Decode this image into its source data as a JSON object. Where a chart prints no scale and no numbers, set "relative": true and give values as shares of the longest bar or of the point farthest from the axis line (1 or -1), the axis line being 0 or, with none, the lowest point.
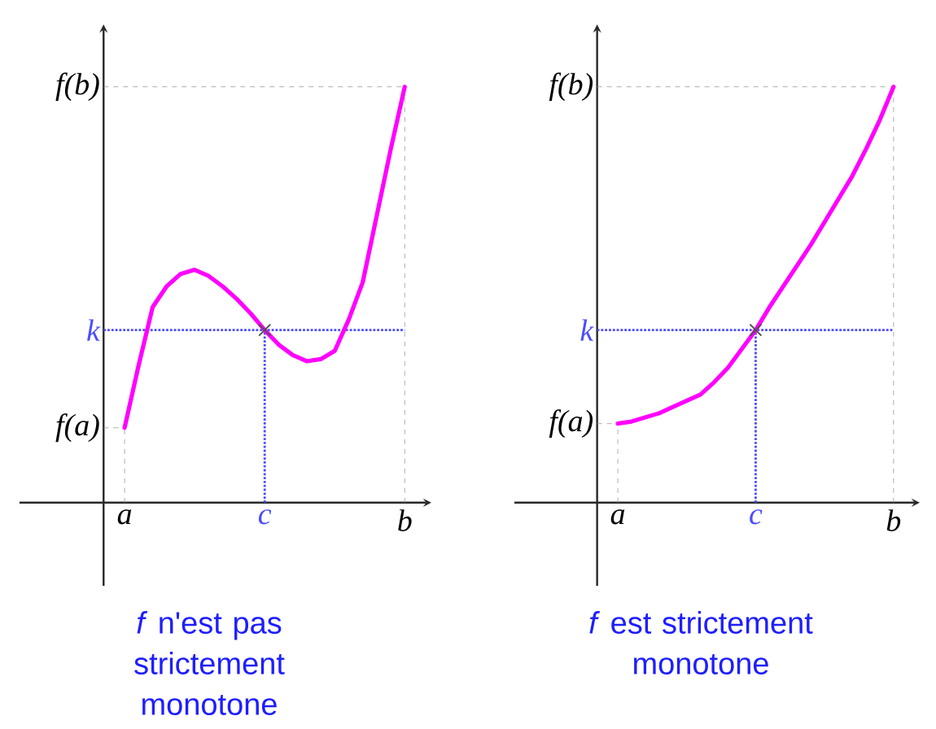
{
  "chart_data": [
    {
      "type": "line",
      "relative": true,
      "annotations": [
        "*f* n'est pas strictement monotone"
      ],
      "categories": [
        "a",
        null,
        null,
        null,
        null,
        null,
        null,
        null,
        null,
        null,
        "c",
        null,
        null,
        null,
        null,
        null,
        null,
        null,
        null,
        null,
        "b"
      ],
      "series": [
        {
          "type": "line",
          "color": "#ff00ff",
          "values": [
            0.18,
            0.33,
            0.47,
            0.52,
            0.55,
            0.56,
            0.545,
            0.52,
            0.49,
            0.455,
            0.415,
            0.38,
            0.355,
            0.34,
            0.345,
            0.365,
            0.44,
            0.53,
            0.69,
            0.85,
            1
          ]
        }
      ],
      "ref_lines": [
        {
          "axis": "y",
          "value": 0.18,
          "label": "f(a)",
          "color": "#999999",
          "line_style": "dashed"
        },
        {
          "axis": "y",
          "value": 0.415,
          "label": "k",
          "color": "#4d4dff",
          "line_style": "dotted"
        },
        {
          "axis": "y",
          "value": 1,
          "label": "f(b)",
          "color": "#999999",
          "line_style": "dashed"
        },
        {
          "axis": "x",
          "value": "a",
          "color": "#999999",
          "line_style": "dashed"
        },
        {
          "axis": "x",
          "value": "c",
          "color": "#4d4dff",
          "line_style": "dotted"
        },
        {
          "axis": "x",
          "value": "b",
          "color": "#999999",
          "line_style": "dashed"
        }
      ]
    },
    {
      "type": "line",
      "relative": true,
      "annotations": [
        "*f* est strictement monotone"
      ],
      "categories": [
        "a",
        null,
        null,
        null,
        null,
        null,
        null,
        null,
        null,
        null,
        "c",
        null,
        null,
        null,
        null,
        null,
        null,
        null,
        null,
        null,
        "b"
      ],
      "series": [
        {
          "type": "line",
          "color": "#ff00ff",
          "values": [
            0.19,
            0.195,
            0.205,
            0.215,
            0.23,
            0.245,
            0.26,
            0.29,
            0.325,
            0.37,
            0.415,
            0.47,
            0.52,
            0.57,
            0.62,
            0.675,
            0.73,
            0.785,
            0.85,
            0.92,
            1
          ]
        }
      ],
      "ref_lines": [
        {
          "axis": "y",
          "value": 0.19,
          "label": "f(a)",
          "color": "#999999",
          "line_style": "dashed"
        },
        {
          "axis": "y",
          "value": 0.415,
          "label": "k",
          "color": "#4d4dff",
          "line_style": "dotted"
        },
        {
          "axis": "y",
          "value": 1,
          "label": "f(b)",
          "color": "#999999",
          "line_style": "dashed"
        },
        {
          "axis": "x",
          "value": "a",
          "color": "#999999",
          "line_style": "dashed"
        },
        {
          "axis": "x",
          "value": "c",
          "color": "#4d4dff",
          "line_style": "dotted"
        },
        {
          "axis": "x",
          "value": "b",
          "color": "#999999",
          "line_style": "dashed"
        }
      ]
    }
  ]
}
